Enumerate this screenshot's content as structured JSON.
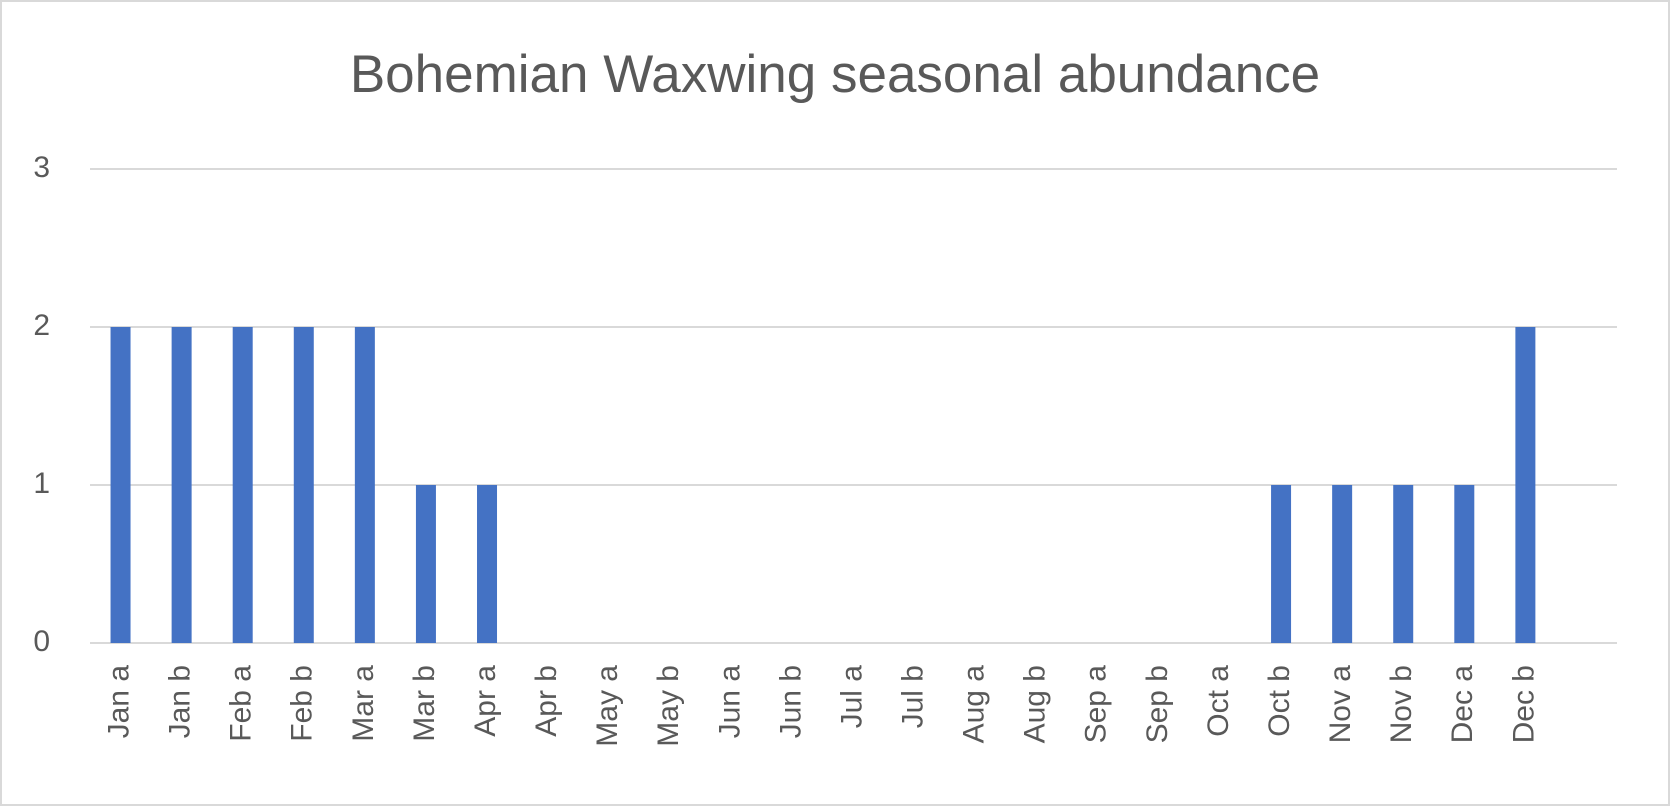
{
  "chart_data": {
    "type": "bar",
    "title": "Bohemian Waxwing seasonal abundance",
    "categories": [
      "Jan a",
      "Jan b",
      "Feb a",
      "Feb b",
      "Mar a",
      "Mar b",
      "Apr a",
      "Apr b",
      "May a",
      "May b",
      "Jun a",
      "Jun b",
      "Jul a",
      "Jul b",
      "Aug a",
      "Aug b",
      "Sep a",
      "Sep b",
      "Oct a",
      "Oct b",
      "Nov a",
      "Nov b",
      "Dec a",
      "Dec b",
      null
    ],
    "values": [
      2,
      2,
      2,
      2,
      2,
      1,
      1,
      0,
      0,
      0,
      0,
      0,
      0,
      0,
      0,
      0,
      0,
      0,
      0,
      1,
      1,
      1,
      1,
      2,
      null
    ],
    "color": "#4472c4",
    "ylim": [
      0,
      3
    ],
    "yticks": [
      0,
      1,
      2,
      3
    ],
    "grid": true
  }
}
